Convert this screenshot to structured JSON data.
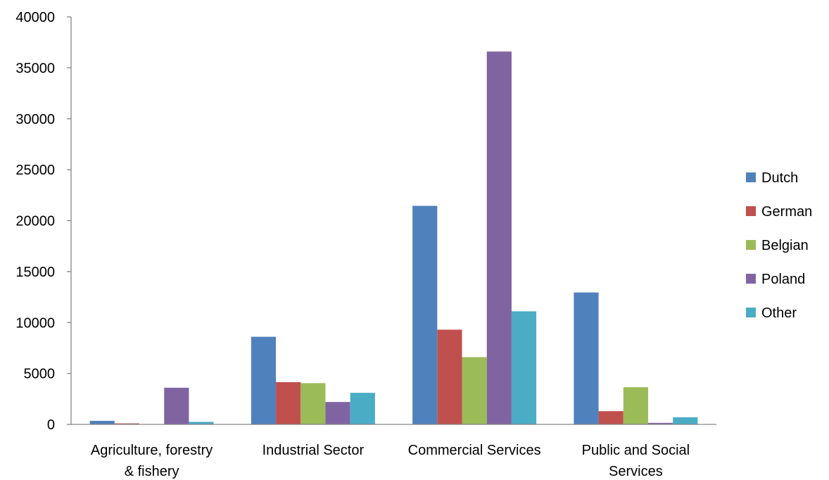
{
  "chart_data": {
    "type": "bar",
    "title": "",
    "xlabel": "",
    "ylabel": "",
    "ylim": [
      0,
      40000
    ],
    "yticks": [
      0,
      5000,
      10000,
      15000,
      20000,
      25000,
      30000,
      35000,
      40000
    ],
    "ytick_labels": [
      "0",
      "5000",
      "10000",
      "15000",
      "20000",
      "25000",
      "30000",
      "35000",
      "40000"
    ],
    "categories": [
      [
        "Agriculture, forestry",
        "& fishery"
      ],
      [
        "Industrial Sector"
      ],
      [
        "Commercial Services"
      ],
      [
        "Public and Social",
        "Services"
      ]
    ],
    "series": [
      {
        "name": "Dutch",
        "color": "#4F81BD",
        "values": [
          350,
          8600,
          21450,
          12950
        ]
      },
      {
        "name": "German",
        "color": "#C0504D",
        "values": [
          100,
          4150,
          9300,
          1300
        ]
      },
      {
        "name": "Belgian",
        "color": "#9BBB59",
        "values": [
          0,
          4050,
          6600,
          3650
        ]
      },
      {
        "name": "Poland",
        "color": "#8064A2",
        "values": [
          3600,
          2200,
          36600,
          150
        ]
      },
      {
        "name": "Other",
        "color": "#4BACC6",
        "values": [
          250,
          3100,
          11100,
          700
        ]
      }
    ],
    "grid": false,
    "legend_position": "right"
  }
}
